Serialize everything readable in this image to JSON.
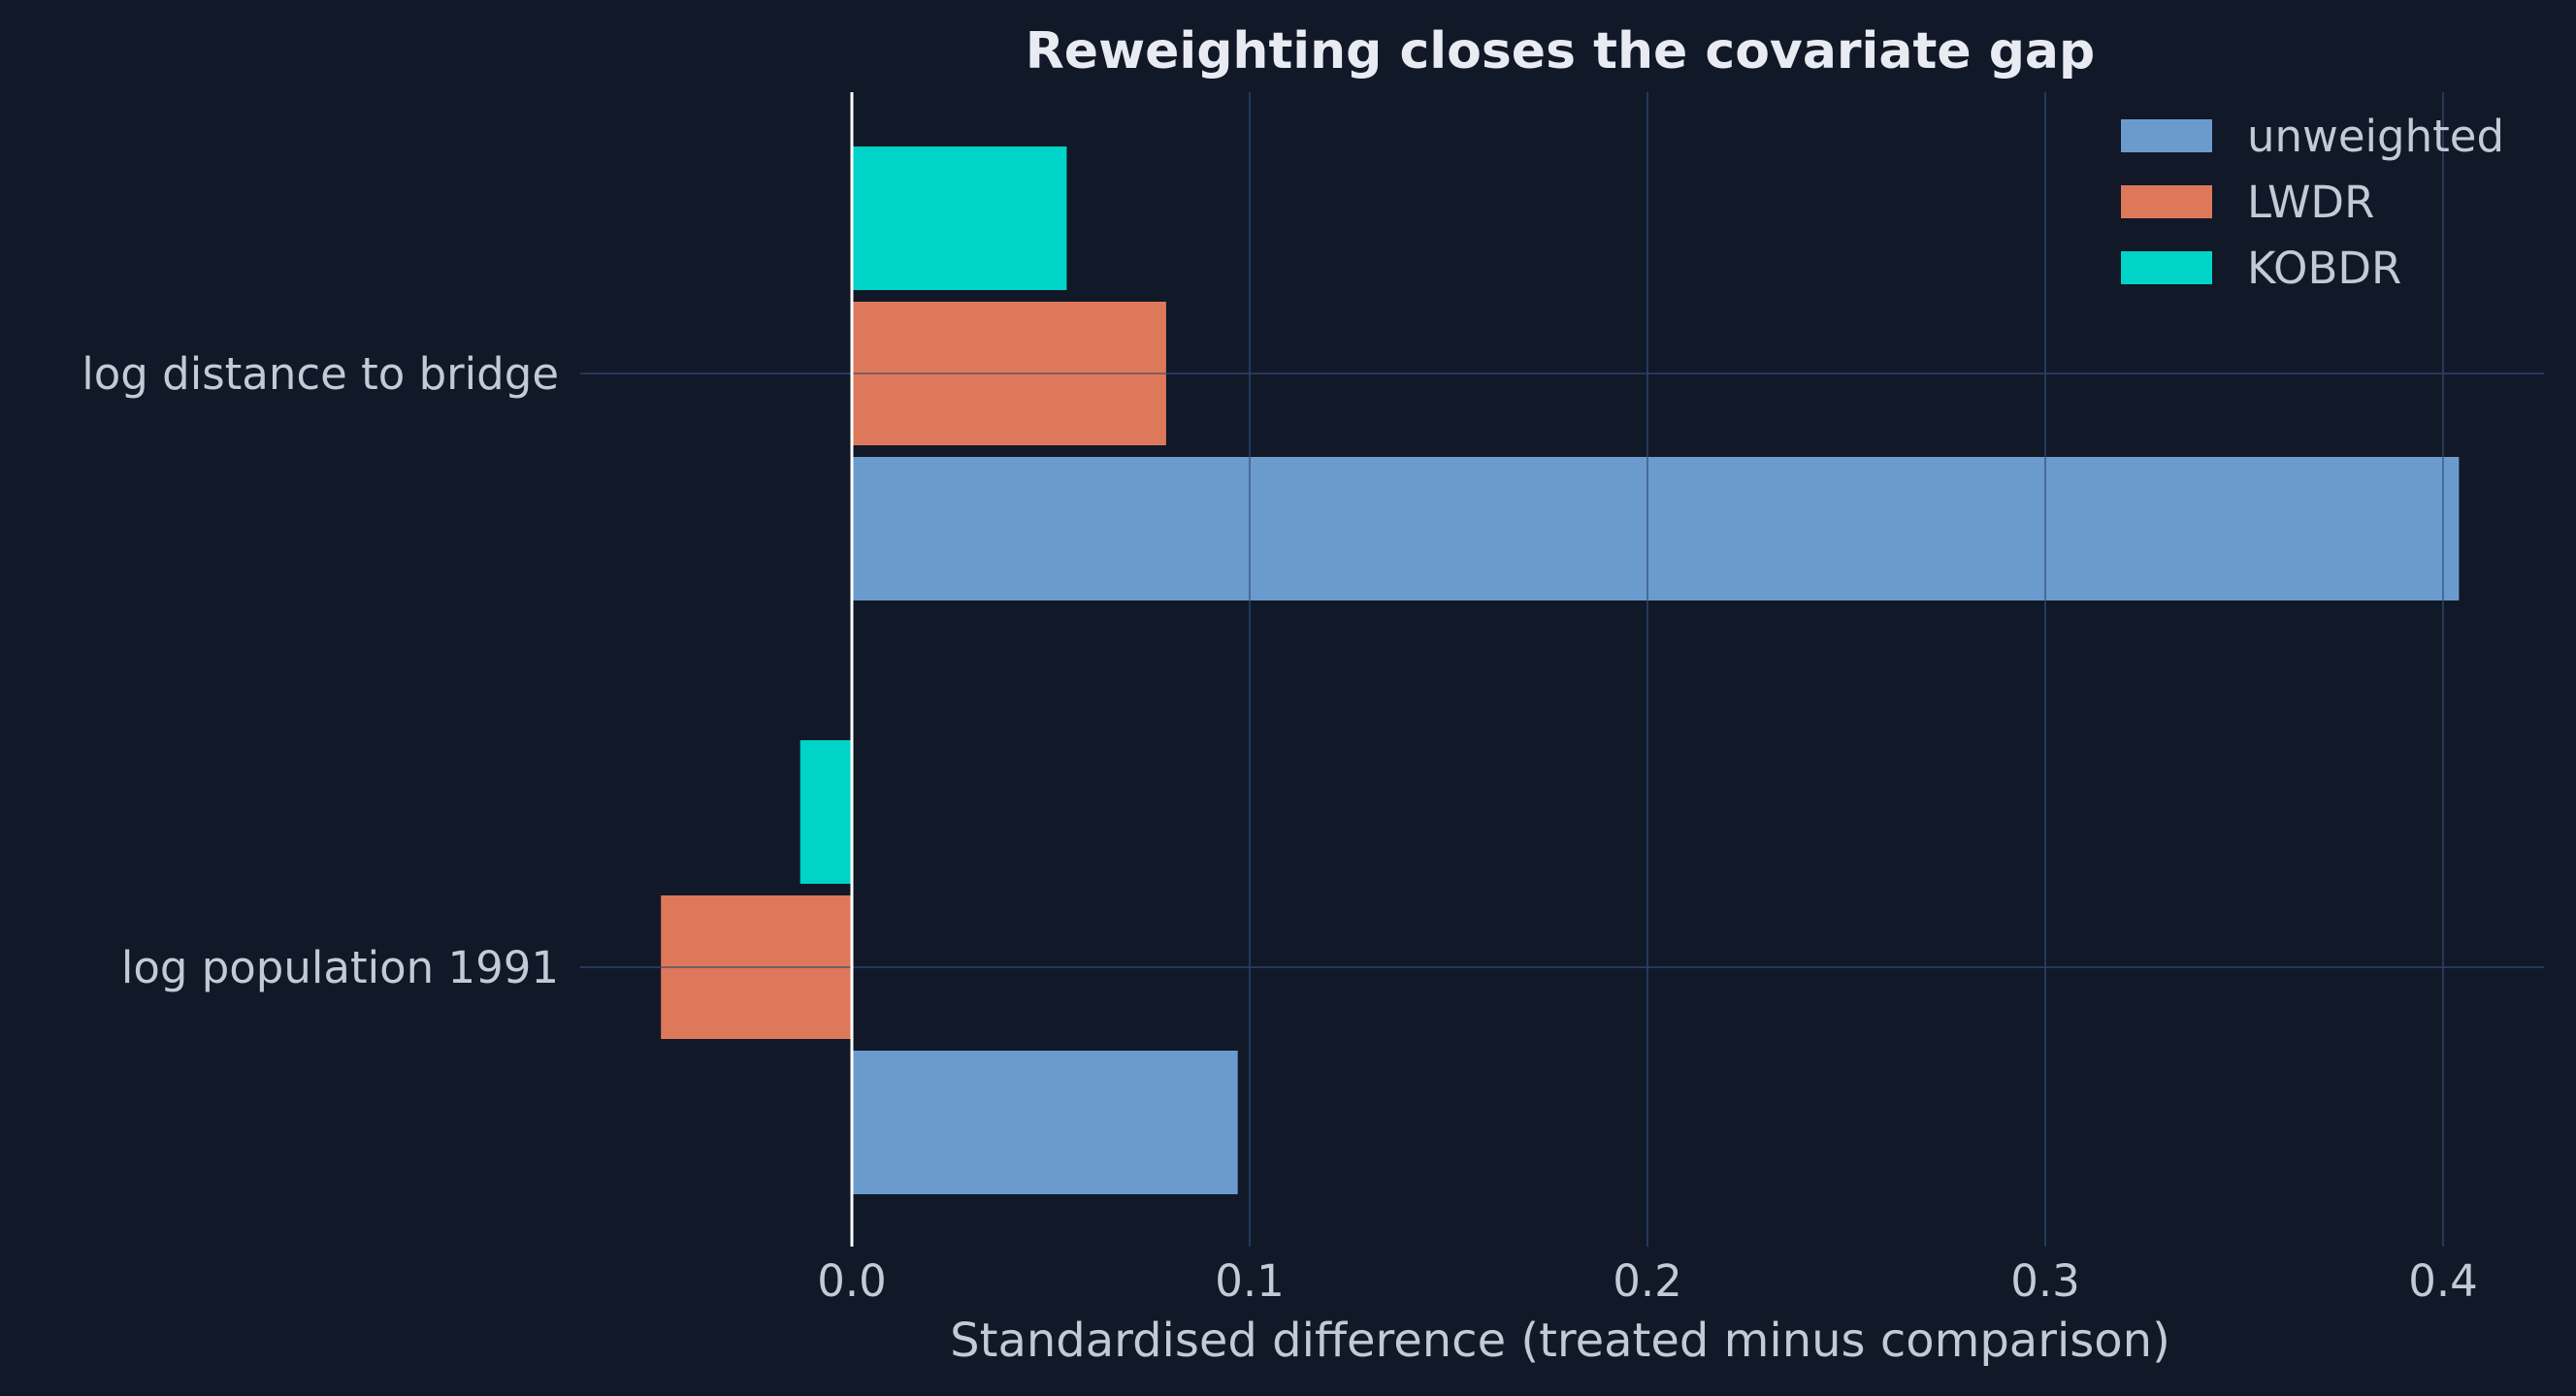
{
  "chart_data": {
    "type": "bar",
    "orientation": "horizontal",
    "title": "Reweighting closes the covariate gap",
    "xlabel": "Standardised difference (treated minus comparison)",
    "ylabel": "",
    "categories": [
      "log distance to bridge",
      "log population 1991"
    ],
    "series": [
      {
        "name": "unweighted",
        "color": "#6b9bcd",
        "values": [
          0.404,
          0.097
        ]
      },
      {
        "name": "LWDR",
        "color": "#dd785a",
        "values": [
          0.079,
          -0.048
        ]
      },
      {
        "name": "KOBDR",
        "color": "#00d4c8",
        "values": [
          0.054,
          -0.013
        ]
      }
    ],
    "xlim": [
      -0.07,
      0.425
    ],
    "xticks": [
      "0.0",
      "0.1",
      "0.2",
      "0.3",
      "0.4"
    ],
    "grid": true,
    "legend_position": "top-right",
    "colors": {
      "background": "#111827",
      "grid": "#1e2b4a",
      "zero_line": "#ffffff",
      "text": "#c4c9d6"
    }
  }
}
